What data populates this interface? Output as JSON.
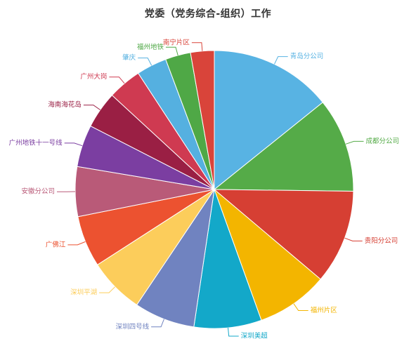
{
  "chart_data": {
    "type": "pie",
    "title": "党委（党务综合-组织）工作",
    "start_angle_deg": 90,
    "direction": "clockwise",
    "slices": [
      {
        "label": "青岛分公司",
        "value": 14.5,
        "color": "#58b3e3"
      },
      {
        "label": "成都分公司",
        "value": 11.2,
        "color": "#55ab48"
      },
      {
        "label": "贵阳分公司",
        "value": 11.2,
        "color": "#d63f33"
      },
      {
        "label": "福州片区",
        "value": 8.5,
        "color": "#f3b500"
      },
      {
        "label": "深圳美超",
        "value": 8.0,
        "color": "#13a8c9"
      },
      {
        "label": "深圳四号线",
        "value": 7.2,
        "color": "#7083c0"
      },
      {
        "label": "深圳平湖",
        "value": 6.6,
        "color": "#fccd5b"
      },
      {
        "label": "广佛江",
        "value": 6.1,
        "color": "#ec5230"
      },
      {
        "label": "安徽分公司",
        "value": 5.9,
        "color": "#b95a78"
      },
      {
        "label": "广州地铁十一号线",
        "value": 5.0,
        "color": "#7b3ea1"
      },
      {
        "label": "海南海花岛",
        "value": 4.4,
        "color": "#9a1f44"
      },
      {
        "label": "广州大岗",
        "value": 4.0,
        "color": "#cf3a51"
      },
      {
        "label": "肇庆",
        "value": 3.6,
        "color": "#55b0e0"
      },
      {
        "label": "福州地铁",
        "value": 3.0,
        "color": "#4fa846"
      },
      {
        "label": "南宁片区",
        "value": 2.8,
        "color": "#d9443a"
      }
    ]
  }
}
